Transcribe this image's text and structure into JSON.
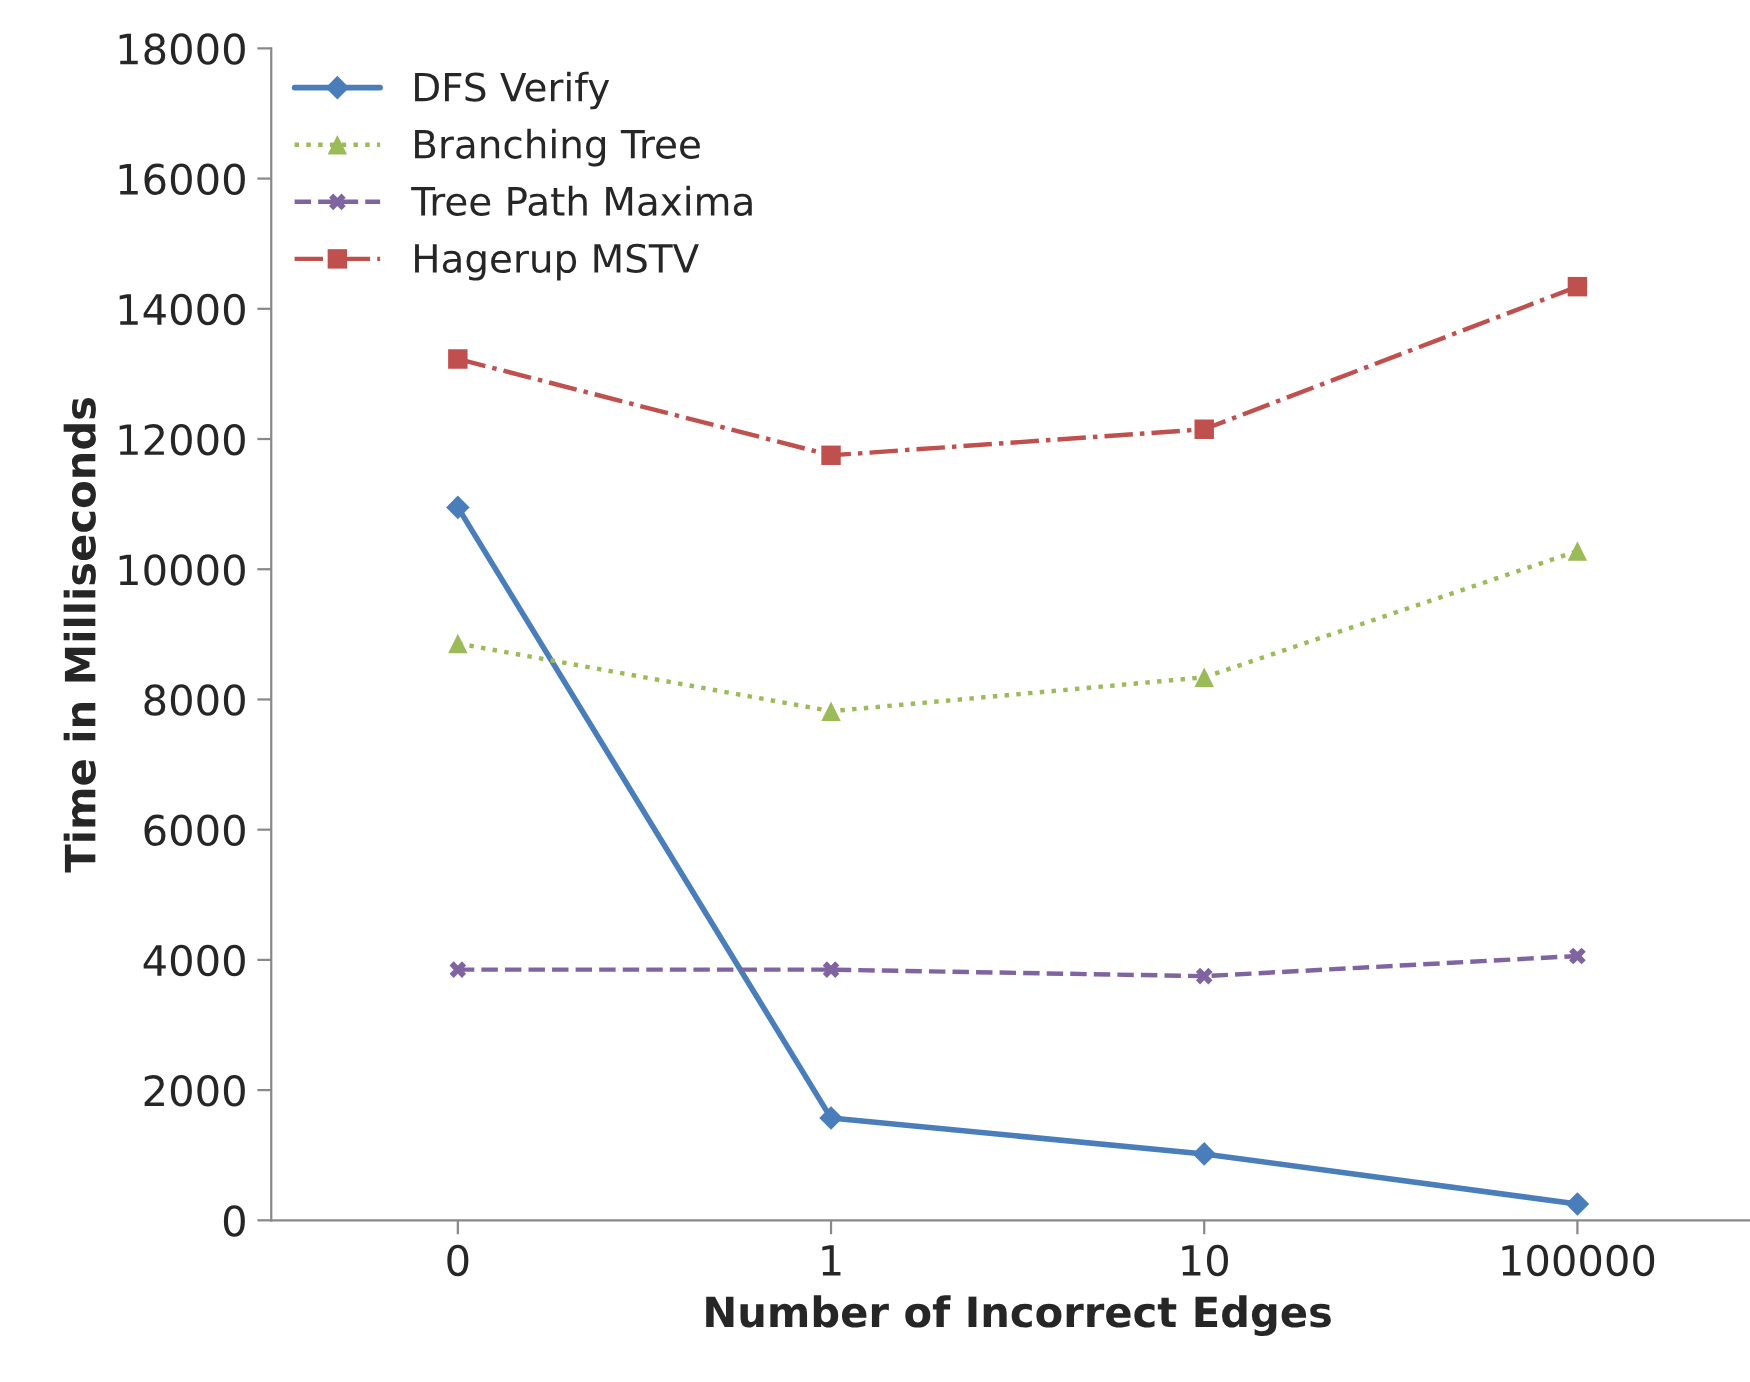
{
  "chart_data": {
    "type": "line",
    "xlabel": "Number of Incorrect Edges",
    "ylabel": "Time in Milliseconds",
    "categories": [
      "0",
      "1",
      "10",
      "100000"
    ],
    "series": [
      {
        "name": "DFS Verify",
        "color": "#4a7ebb",
        "marker": "diamond",
        "line_style": "solid",
        "values": [
          10950,
          1570,
          1020,
          250
        ]
      },
      {
        "name": "Branching Tree",
        "color": "#9bbb59",
        "marker": "triangle",
        "line_style": "dotted",
        "values": [
          8860,
          7820,
          8340,
          10280
        ]
      },
      {
        "name": "Tree Path Maxima",
        "color": "#8064a2",
        "marker": "cross",
        "line_style": "dashed",
        "values": [
          3850,
          3850,
          3750,
          4060
        ]
      },
      {
        "name": "Hagerup MSTV",
        "color": "#c0504d",
        "marker": "square",
        "line_style": "dashdot",
        "values": [
          13230,
          11750,
          12150,
          14340
        ]
      }
    ],
    "ylim": [
      0,
      18000
    ],
    "yticks": [
      0,
      2000,
      4000,
      6000,
      8000,
      10000,
      12000,
      14000,
      16000,
      18000
    ],
    "grid": false,
    "legend": "top left"
  }
}
